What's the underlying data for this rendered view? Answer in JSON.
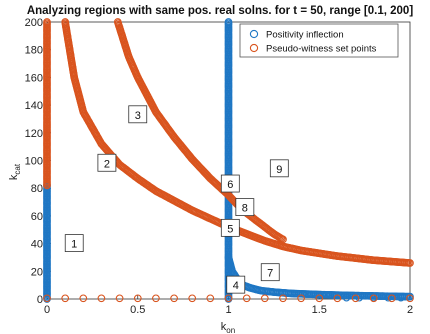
{
  "chart_data": {
    "type": "scatter",
    "title": "Analyzing regions with same pos. real solns. for t = 50, range [0.1, 200]",
    "xlabel_main": "k",
    "xlabel_sub": "on",
    "ylabel_main": "k",
    "ylabel_sub": "cat",
    "xlim": [
      0,
      2
    ],
    "ylim": [
      0,
      200
    ],
    "x_ticks": [
      0,
      0.5,
      1,
      1.5,
      2
    ],
    "x_tick_labels": [
      "0",
      "0.5",
      "1",
      "1.5",
      "2"
    ],
    "y_ticks": [
      0,
      20,
      40,
      60,
      80,
      100,
      120,
      140,
      160,
      180,
      200
    ],
    "y_tick_labels": [
      "0",
      "20",
      "40",
      "60",
      "80",
      "100",
      "120",
      "140",
      "160",
      "180",
      "200"
    ],
    "legend_position": "top-right",
    "colors": {
      "blue": "#1f77c4",
      "orange": "#d9541e"
    },
    "series": [
      {
        "name": "Positivity inflection",
        "color": "#1f77c4",
        "marker": "circle-open",
        "segments": [
          {
            "kind": "vertical",
            "x": 0,
            "y_from": 0,
            "y_to": 82
          },
          {
            "kind": "vertical",
            "x": 1,
            "y_from": 0,
            "y_to": 200
          },
          {
            "kind": "curve",
            "points": [
              [
                1.0,
                30
              ],
              [
                1.02,
                20
              ],
              [
                1.05,
                14
              ],
              [
                1.08,
                10
              ],
              [
                1.12,
                8
              ],
              [
                1.18,
                6
              ],
              [
                1.25,
                5
              ],
              [
                1.35,
                4
              ],
              [
                1.5,
                3.2
              ],
              [
                1.65,
                2.6
              ],
              [
                1.8,
                2.2
              ],
              [
                1.95,
                1.8
              ],
              [
                2.0,
                1.7
              ]
            ]
          },
          {
            "kind": "markers",
            "points": [
              [
                1.65,
                1
              ],
              [
                1.72,
                1
              ],
              [
                1.8,
                1
              ],
              [
                1.88,
                1
              ],
              [
                1.95,
                1
              ]
            ]
          }
        ]
      },
      {
        "name": "Pseudo-witness set points",
        "color": "#d9541e",
        "marker": "circle-open",
        "segments": [
          {
            "kind": "vertical",
            "x": 0,
            "y_from": 82,
            "y_to": 200
          },
          {
            "kind": "curve",
            "points": [
              [
                0.1,
                200
              ],
              [
                0.15,
                160
              ],
              [
                0.2,
                135
              ],
              [
                0.3,
                112
              ],
              [
                0.4,
                97
              ],
              [
                0.5,
                87
              ],
              [
                0.6,
                78
              ],
              [
                0.7,
                71
              ],
              [
                0.8,
                64
              ],
              [
                0.9,
                58
              ],
              [
                1.0,
                52
              ],
              [
                1.1,
                47
              ],
              [
                1.2,
                42
              ],
              [
                1.3,
                38
              ],
              [
                1.4,
                35
              ],
              [
                1.5,
                33
              ],
              [
                1.6,
                31
              ],
              [
                1.7,
                29.5
              ],
              [
                1.8,
                28
              ],
              [
                1.9,
                27
              ],
              [
                2.0,
                26
              ]
            ]
          },
          {
            "kind": "curve",
            "points": [
              [
                0.39,
                200
              ],
              [
                0.45,
                175
              ],
              [
                0.5,
                160
              ],
              [
                0.6,
                135
              ],
              [
                0.7,
                117
              ],
              [
                0.8,
                101
              ],
              [
                0.9,
                87
              ],
              [
                1.0,
                75
              ],
              [
                1.05,
                68
              ],
              [
                1.1,
                62
              ],
              [
                1.15,
                57
              ],
              [
                1.2,
                52
              ],
              [
                1.25,
                47
              ],
              [
                1.3,
                43
              ]
            ]
          },
          {
            "kind": "markers",
            "points": [
              [
                0,
                0.5
              ],
              [
                0.1,
                0.5
              ],
              [
                0.2,
                0.5
              ],
              [
                0.3,
                0.5
              ],
              [
                0.4,
                0.5
              ],
              [
                0.5,
                0.5
              ],
              [
                0.6,
                0.5
              ],
              [
                0.7,
                0.5
              ],
              [
                0.8,
                0.5
              ],
              [
                0.9,
                0.5
              ],
              [
                1.0,
                0.5
              ],
              [
                1.1,
                0.5
              ],
              [
                1.2,
                0.5
              ],
              [
                1.3,
                0.5
              ],
              [
                1.4,
                0.5
              ],
              [
                1.5,
                0.5
              ],
              [
                1.6,
                0.5
              ],
              [
                1.7,
                0.5
              ],
              [
                1.8,
                0.5
              ],
              [
                1.9,
                0.5
              ],
              [
                2.0,
                0.5
              ]
            ]
          }
        ]
      }
    ],
    "annotations": [
      {
        "label": "1",
        "x": 0.15,
        "y": 40
      },
      {
        "label": "2",
        "x": 0.33,
        "y": 98
      },
      {
        "label": "3",
        "x": 0.5,
        "y": 133
      },
      {
        "label": "4",
        "x": 1.04,
        "y": 10
      },
      {
        "label": "5",
        "x": 1.01,
        "y": 51
      },
      {
        "label": "6",
        "x": 1.01,
        "y": 83
      },
      {
        "label": "7",
        "x": 1.23,
        "y": 19
      },
      {
        "label": "8",
        "x": 1.09,
        "y": 66
      },
      {
        "label": "9",
        "x": 1.28,
        "y": 94
      }
    ]
  }
}
